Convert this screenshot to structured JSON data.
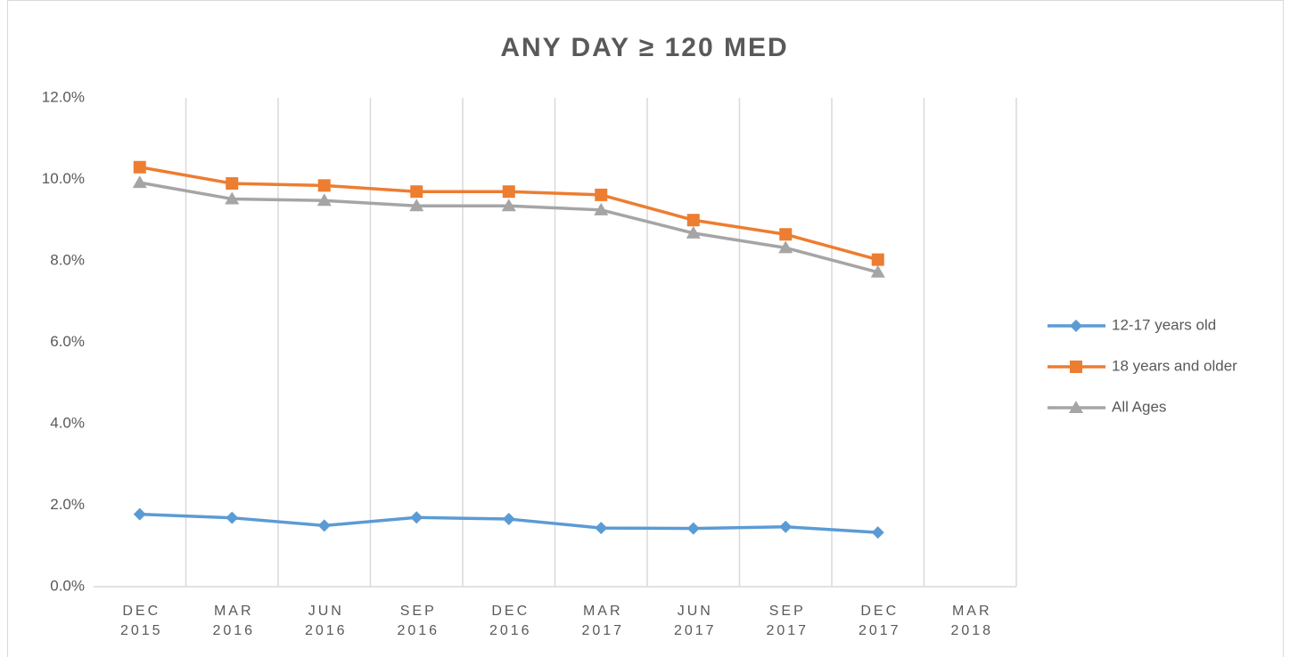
{
  "chart_data": {
    "type": "line",
    "title": "ANY DAY ≥ 120 MED",
    "categories": [
      "DEC 2015",
      "MAR 2016",
      "JUN 2016",
      "SEP 2016",
      "DEC 2016",
      "MAR 2017",
      "JUN 2017",
      "SEP 2017",
      "DEC 2017",
      "MAR 2018"
    ],
    "series": [
      {
        "name": "12-17 years old",
        "color": "#5b9bd5",
        "marker": "diamond",
        "values": [
          1.78,
          1.69,
          1.5,
          1.7,
          1.66,
          1.44,
          1.43,
          1.47,
          1.33,
          null
        ]
      },
      {
        "name": "18 years and older",
        "color": "#ed7d31",
        "marker": "square",
        "values": [
          10.3,
          9.9,
          9.85,
          9.7,
          9.7,
          9.62,
          9.0,
          8.65,
          8.03,
          null
        ]
      },
      {
        "name": "All Ages",
        "color": "#a5a5a5",
        "marker": "triangle",
        "values": [
          9.92,
          9.52,
          9.48,
          9.35,
          9.35,
          9.25,
          8.68,
          8.32,
          7.72,
          null
        ]
      }
    ],
    "ylim": [
      0,
      12
    ],
    "yticks": [
      {
        "value": 0,
        "label": "0.0%"
      },
      {
        "value": 2,
        "label": "2.0%"
      },
      {
        "value": 4,
        "label": "4.0%"
      },
      {
        "value": 6,
        "label": "6.0%"
      },
      {
        "value": 8,
        "label": "8.0%"
      },
      {
        "value": 10,
        "label": "10.0%"
      },
      {
        "value": 12,
        "label": "12.0%"
      }
    ],
    "grid": "x",
    "legend": "right"
  }
}
